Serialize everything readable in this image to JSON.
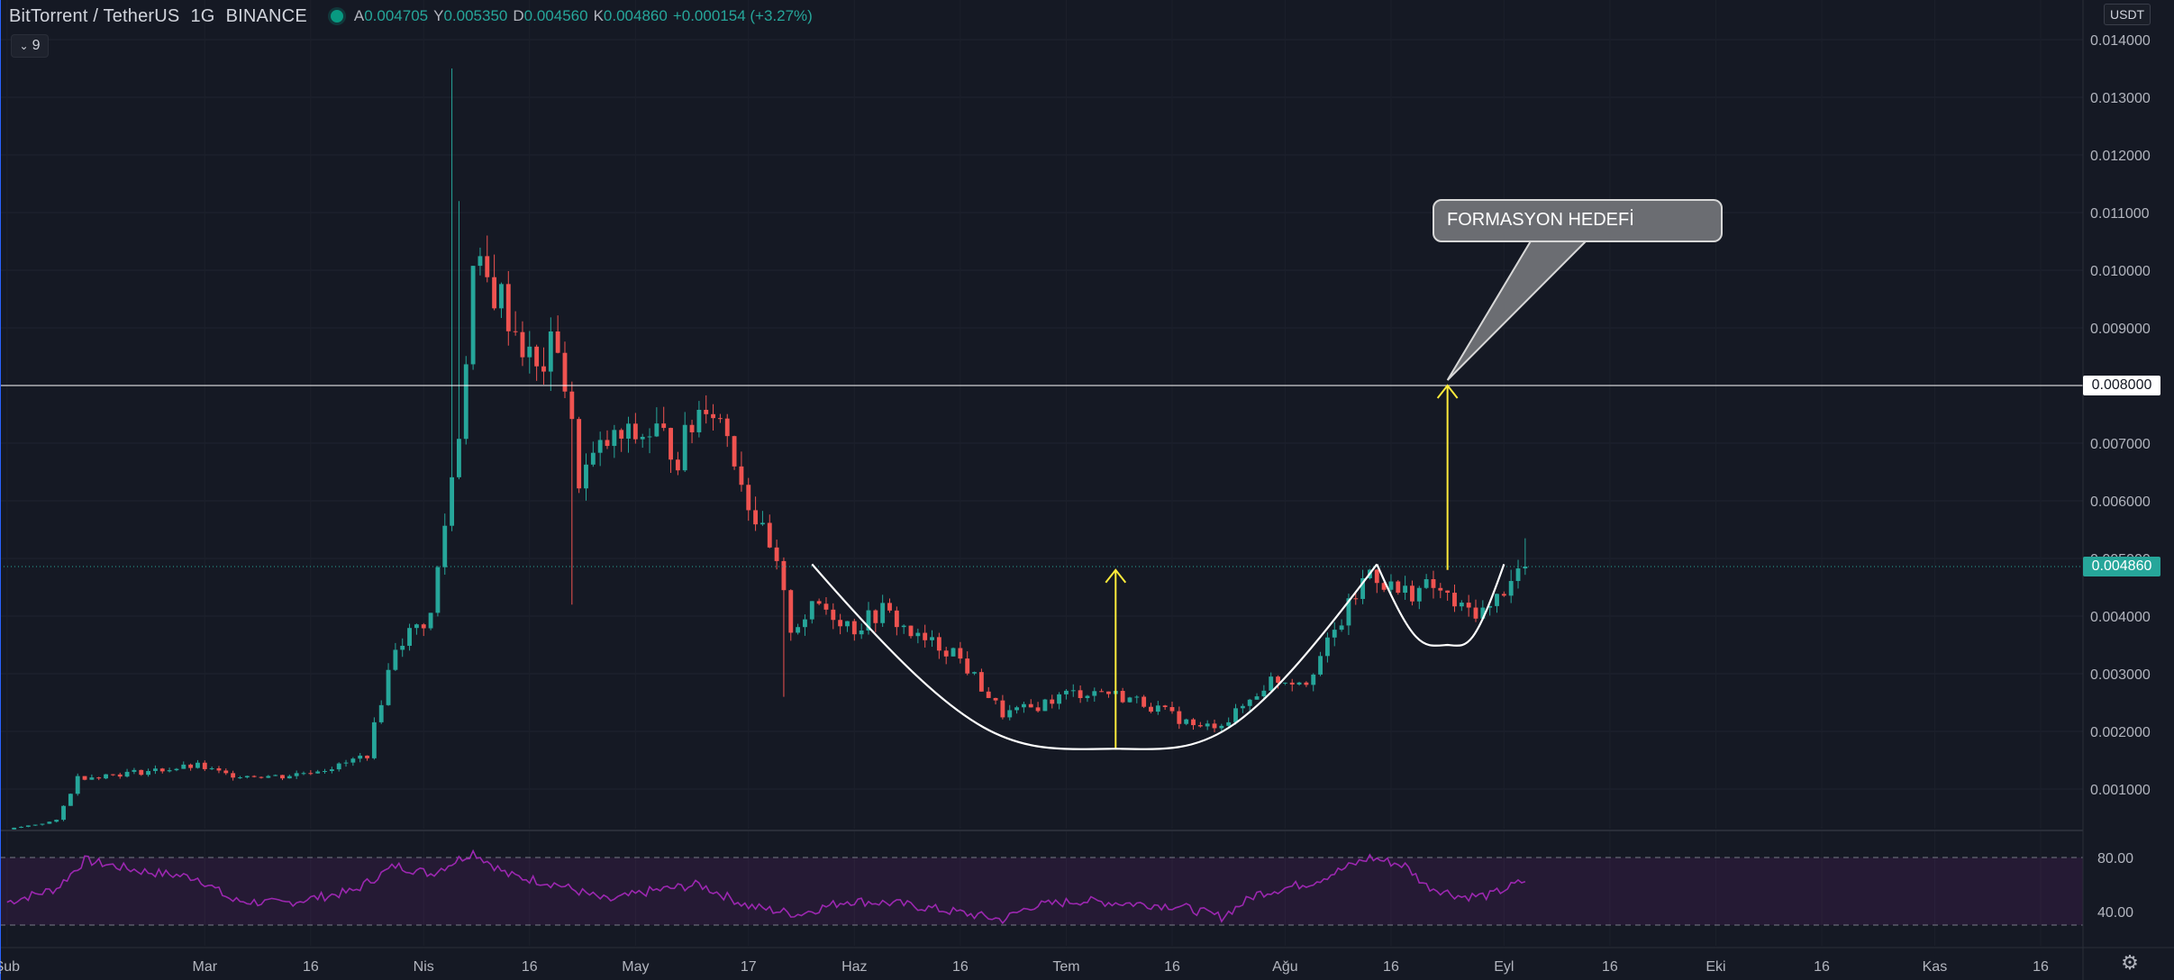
{
  "header": {
    "symbol": "BitTorrent / TetherUS",
    "interval": "1G",
    "exchange": "BINANCE",
    "o_label": "A",
    "o_value": "0.004705",
    "h_label": "Y",
    "h_value": "0.005350",
    "l_label": "D",
    "l_value": "0.004560",
    "c_label": "K",
    "c_value": "0.004860",
    "change": "+0.000154 (+3.27%)",
    "indicator_count": "9"
  },
  "price_axis": {
    "unit": "USDT",
    "horizontal_level_label": "0.008000",
    "current_price_label": "0.004860"
  },
  "annotation": {
    "callout_text": "FORMASYON HEDEFİ"
  },
  "colors": {
    "background": "#151924",
    "up": "#26a69a",
    "down": "#ef5350",
    "rsi": "#9c27b0",
    "arrow": "#ffeb3b",
    "pattern": "#ffffff",
    "level": "#ffffff"
  },
  "icons": {
    "settings": "gear-icon",
    "toggle": "chevron-down-icon"
  },
  "chart_data": [
    {
      "type": "candlestick",
      "title": "BitTorrent / TetherUS 1G BINANCE",
      "ylim": [
        0.0,
        0.0142
      ],
      "y_ticks": [
        "0.014000",
        "0.013000",
        "0.012000",
        "0.011000",
        "0.010000",
        "0.009000",
        "0.008000",
        "0.007000",
        "0.006000",
        "0.005000",
        "0.004000",
        "0.003000",
        "0.002000",
        "0.001000"
      ],
      "x_ticks": [
        "Şub",
        "Mar",
        "16",
        "Nis",
        "16",
        "May",
        "17",
        "Haz",
        "16",
        "Tem",
        "16",
        "Ağu",
        "16",
        "Eyl",
        "16",
        "Eki",
        "16",
        "Kas",
        "16"
      ],
      "x_range": [
        "2021-01-31",
        "2021-11-22"
      ],
      "anchors": [
        [
          "2021-02-01",
          0.0003
        ],
        [
          "2021-02-08",
          0.00045
        ],
        [
          "2021-02-11",
          0.0012
        ],
        [
          "2021-02-20",
          0.0013
        ],
        [
          "2021-02-28",
          0.0014
        ],
        [
          "2021-03-04",
          0.00125
        ],
        [
          "2021-03-12",
          0.00122
        ],
        [
          "2021-03-20",
          0.0014
        ],
        [
          "2021-03-24",
          0.0016
        ],
        [
          "2021-03-28",
          0.0035
        ],
        [
          "2021-04-02",
          0.004
        ],
        [
          "2021-04-06",
          0.0072
        ],
        [
          "2021-04-08",
          0.01
        ],
        [
          "2021-04-12",
          0.0095
        ],
        [
          "2021-04-17",
          0.0082
        ],
        [
          "2021-04-20",
          0.0088
        ],
        [
          "2021-04-23",
          0.0064
        ],
        [
          "2021-04-27",
          0.007
        ],
        [
          "2021-05-04",
          0.0072
        ],
        [
          "2021-05-07",
          0.0068
        ],
        [
          "2021-05-11",
          0.0078
        ],
        [
          "2021-05-14",
          0.0072
        ],
        [
          "2021-05-17",
          0.006
        ],
        [
          "2021-05-21",
          0.0048
        ],
        [
          "2021-05-23",
          0.0038
        ],
        [
          "2021-05-27",
          0.0042
        ],
        [
          "2021-06-01",
          0.0038
        ],
        [
          "2021-06-05",
          0.0041
        ],
        [
          "2021-06-10",
          0.0036
        ],
        [
          "2021-06-15",
          0.0034
        ],
        [
          "2021-06-22",
          0.0023
        ],
        [
          "2021-06-26",
          0.0024
        ],
        [
          "2021-07-01",
          0.00265
        ],
        [
          "2021-07-06",
          0.0027
        ],
        [
          "2021-07-12",
          0.0025
        ],
        [
          "2021-07-20",
          0.00205
        ],
        [
          "2021-07-24",
          0.0022
        ],
        [
          "2021-07-30",
          0.0029
        ],
        [
          "2021-08-04",
          0.0029
        ],
        [
          "2021-08-08",
          0.0037
        ],
        [
          "2021-08-13",
          0.0048
        ],
        [
          "2021-08-17",
          0.0044
        ],
        [
          "2021-08-22",
          0.0045
        ],
        [
          "2021-08-26",
          0.0041
        ],
        [
          "2021-08-30",
          0.0041
        ],
        [
          "2021-09-02",
          0.0047
        ],
        [
          "2021-09-04",
          0.00486
        ]
      ],
      "horizontal_level": 0.008,
      "current_price": 0.00486,
      "price_high": 0.0135,
      "annotations": [
        {
          "type": "arrow",
          "date": "2021-07-08",
          "from": 0.0017,
          "to": 0.0048
        },
        {
          "type": "arrow",
          "date": "2021-08-24",
          "from": 0.0048,
          "to": 0.008
        },
        {
          "type": "cup",
          "from_date": "2021-05-26",
          "bottom_date": "2021-07-08",
          "to_date": "2021-08-14",
          "rim": 0.0049,
          "bottom": 0.0017
        },
        {
          "type": "handle",
          "from_date": "2021-08-14",
          "bottom_date": "2021-08-24",
          "to_date": "2021-09-01",
          "rim": 0.0049,
          "bottom": 0.0035
        }
      ]
    },
    {
      "type": "line",
      "title": "",
      "ylim": [
        20,
        100
      ],
      "y_ticks": [
        "80.00",
        "40.00"
      ],
      "bands": [
        30,
        80
      ],
      "anchors": [
        [
          "2021-02-01",
          47
        ],
        [
          "2021-02-08",
          57
        ],
        [
          "2021-02-12",
          78
        ],
        [
          "2021-02-20",
          70
        ],
        [
          "2021-02-28",
          65
        ],
        [
          "2021-03-05",
          48
        ],
        [
          "2021-03-12",
          46
        ],
        [
          "2021-03-22",
          55
        ],
        [
          "2021-03-28",
          74
        ],
        [
          "2021-04-02",
          68
        ],
        [
          "2021-04-08",
          84
        ],
        [
          "2021-04-13",
          67
        ],
        [
          "2021-04-20",
          60
        ],
        [
          "2021-04-27",
          48
        ],
        [
          "2021-05-03",
          55
        ],
        [
          "2021-05-10",
          60
        ],
        [
          "2021-05-17",
          44
        ],
        [
          "2021-05-24",
          38
        ],
        [
          "2021-05-31",
          48
        ],
        [
          "2021-06-07",
          46
        ],
        [
          "2021-06-15",
          40
        ],
        [
          "2021-06-22",
          34
        ],
        [
          "2021-06-26",
          44
        ],
        [
          "2021-07-03",
          48
        ],
        [
          "2021-07-10",
          46
        ],
        [
          "2021-07-17",
          44
        ],
        [
          "2021-07-23",
          36
        ],
        [
          "2021-07-28",
          53
        ],
        [
          "2021-08-05",
          62
        ],
        [
          "2021-08-13",
          80
        ],
        [
          "2021-08-18",
          74
        ],
        [
          "2021-08-21",
          59
        ],
        [
          "2021-08-26",
          51
        ],
        [
          "2021-08-30",
          52
        ],
        [
          "2021-09-04",
          63
        ]
      ]
    }
  ]
}
